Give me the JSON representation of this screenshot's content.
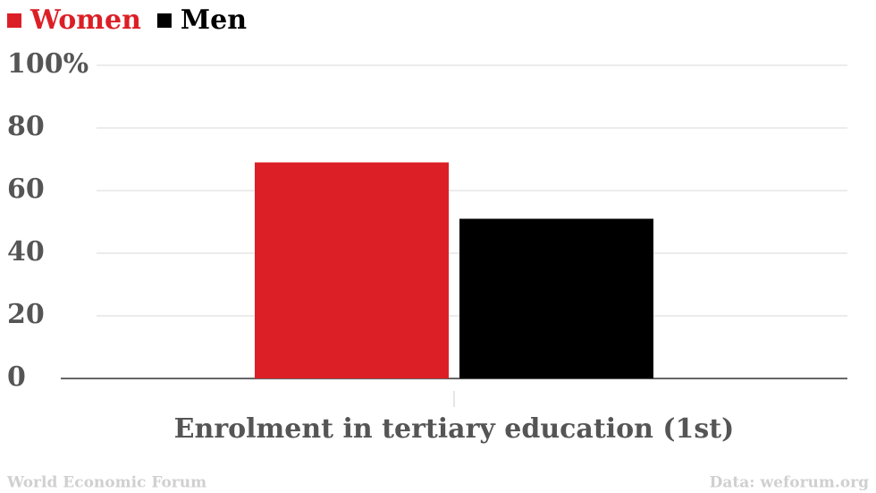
{
  "chart_data": {
    "type": "bar",
    "categories": [
      "Enrolment in tertiary education (1st)"
    ],
    "series": [
      {
        "name": "Women",
        "color": "#dc1f26",
        "values": [
          69
        ]
      },
      {
        "name": "Men",
        "color": "#000000",
        "values": [
          51
        ]
      }
    ],
    "ylim": [
      0,
      100
    ],
    "yticks": [
      0,
      20,
      40,
      60,
      80,
      {
        "value": 100,
        "label": "100%"
      }
    ],
    "grid": true,
    "legend": "top-left",
    "credit": "World Economic Forum",
    "source": "Data: weforum.org"
  }
}
